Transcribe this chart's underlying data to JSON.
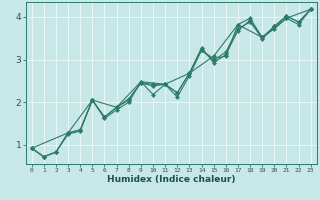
{
  "title": "",
  "xlabel": "Humidex (Indice chaleur)",
  "xlim": [
    -0.5,
    23.5
  ],
  "ylim": [
    0.55,
    4.35
  ],
  "yticks": [
    1,
    2,
    3,
    4
  ],
  "xticks": [
    0,
    1,
    2,
    3,
    4,
    5,
    6,
    7,
    8,
    9,
    10,
    11,
    12,
    13,
    14,
    15,
    16,
    17,
    18,
    19,
    20,
    21,
    22,
    23
  ],
  "bg_color": "#c8e8e8",
  "grid_color": "#e8f8f8",
  "line_color": "#2e7b6a",
  "series": [
    {
      "x": [
        0,
        1,
        2,
        3,
        4,
        5,
        6,
        7,
        8,
        9,
        10,
        11,
        12,
        13,
        14,
        15,
        16,
        17,
        18,
        19,
        20,
        21,
        22,
        23
      ],
      "y": [
        0.92,
        0.72,
        0.83,
        1.25,
        1.32,
        2.05,
        1.62,
        1.82,
        2.0,
        2.48,
        2.18,
        2.42,
        2.12,
        2.62,
        3.22,
        3.02,
        3.08,
        3.82,
        3.97,
        3.52,
        3.72,
        3.97,
        3.82,
        4.18
      ]
    },
    {
      "x": [
        0,
        1,
        2,
        3,
        4,
        5,
        6,
        7,
        8,
        9,
        10,
        11,
        12,
        13,
        14,
        15,
        16,
        17,
        18,
        19,
        20,
        21,
        22,
        23
      ],
      "y": [
        0.92,
        0.72,
        0.83,
        1.28,
        1.35,
        2.05,
        1.65,
        1.88,
        2.05,
        2.45,
        2.42,
        2.42,
        2.22,
        2.68,
        3.28,
        2.92,
        3.12,
        3.68,
        3.92,
        3.48,
        3.78,
        4.02,
        3.88,
        4.18
      ]
    },
    {
      "x": [
        0,
        1,
        2,
        3,
        4,
        5,
        6,
        7,
        8,
        9,
        10,
        11,
        12,
        13,
        14,
        15,
        16,
        17,
        18,
        19,
        20,
        21,
        22,
        23
      ],
      "y": [
        0.92,
        0.72,
        0.83,
        1.28,
        1.35,
        2.05,
        1.65,
        1.88,
        2.08,
        2.45,
        2.38,
        2.42,
        2.22,
        2.68,
        3.22,
        2.98,
        3.18,
        3.72,
        3.88,
        3.52,
        3.78,
        4.02,
        3.88,
        4.18
      ]
    },
    {
      "x": [
        0,
        3,
        5,
        7,
        9,
        11,
        13,
        15,
        17,
        19,
        21,
        23
      ],
      "y": [
        0.92,
        1.28,
        2.05,
        1.88,
        2.48,
        2.42,
        2.68,
        3.08,
        3.82,
        3.52,
        3.97,
        4.18
      ]
    }
  ]
}
